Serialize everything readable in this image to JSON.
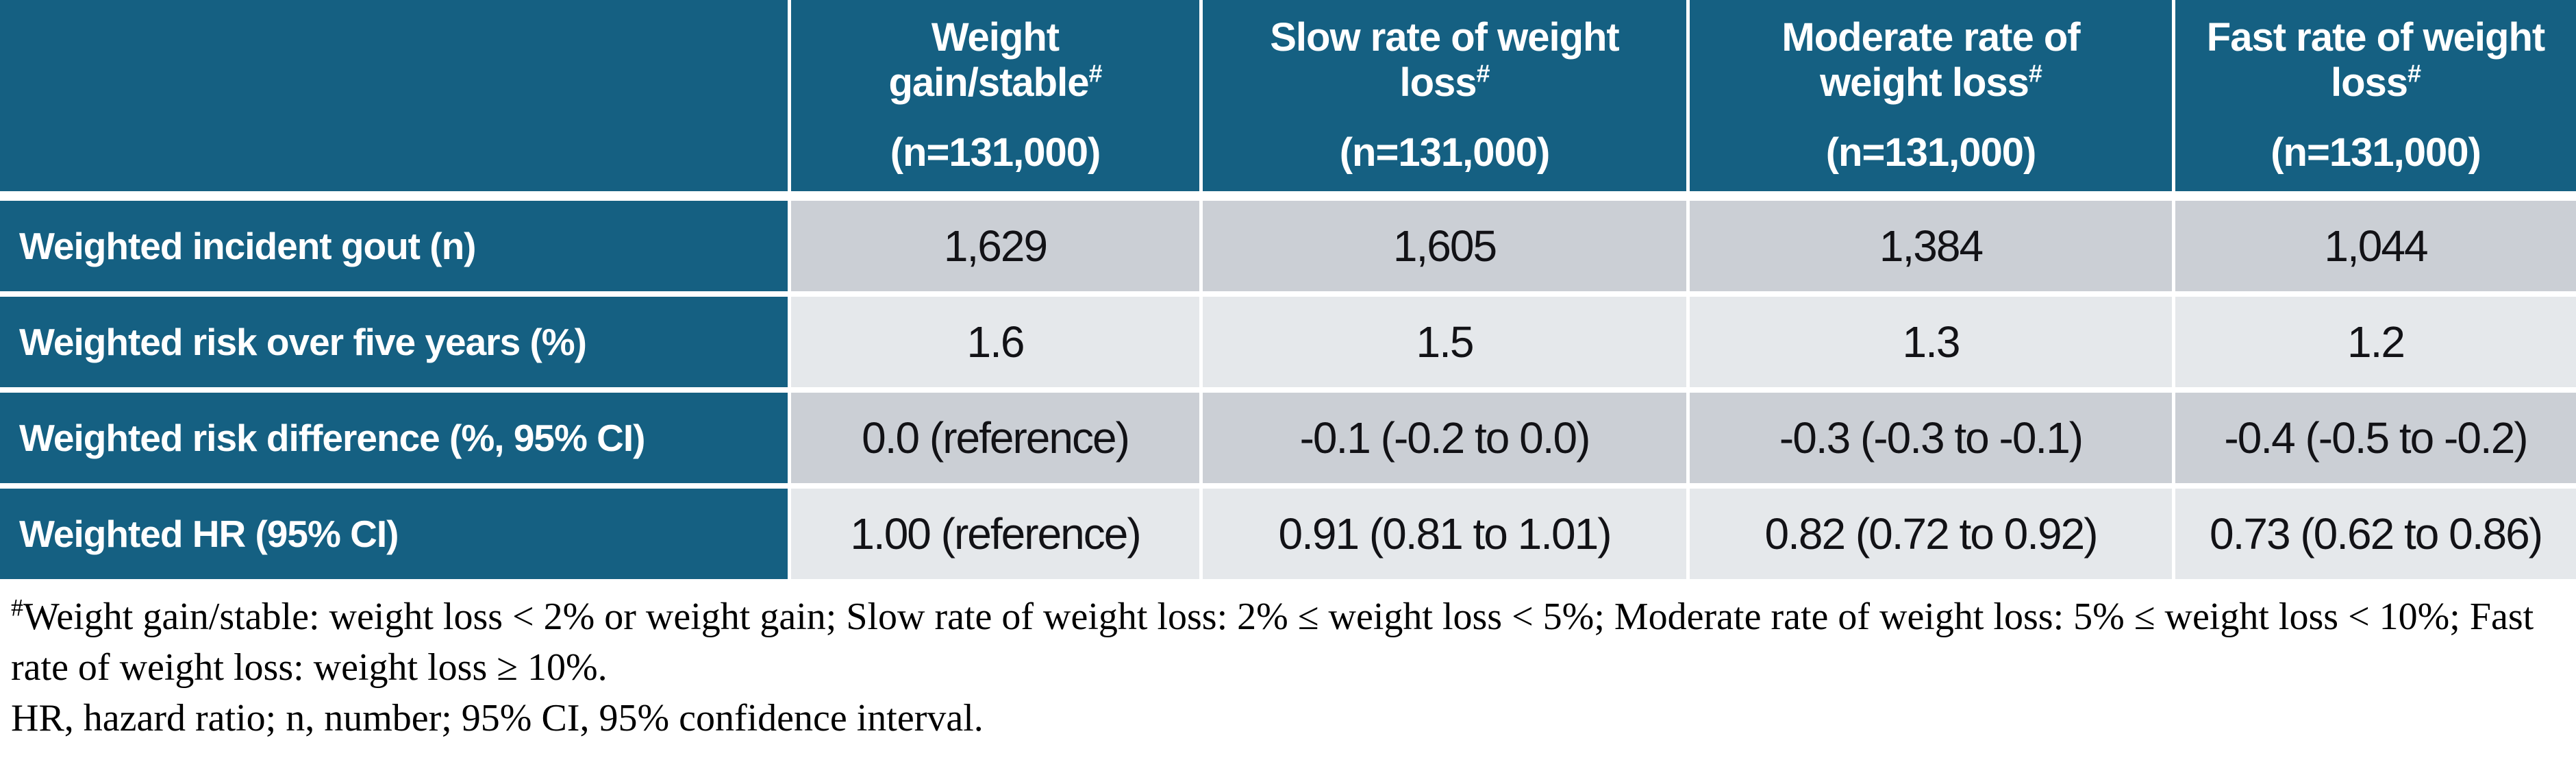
{
  "table": {
    "columns": [
      {
        "title_lines": [
          "Weight",
          "gain/stable"
        ],
        "marker": "#",
        "n": "(n=131,000)"
      },
      {
        "title_lines": [
          "Slow rate of weight",
          "loss"
        ],
        "marker": "#",
        "n": "(n=131,000)"
      },
      {
        "title_lines": [
          "Moderate rate of",
          "weight loss"
        ],
        "marker": "#",
        "n": "(n=131,000)"
      },
      {
        "title_lines": [
          "Fast rate of weight",
          "loss"
        ],
        "marker": "#",
        "n": "(n=131,000)"
      }
    ],
    "rows": [
      {
        "label": "Weighted incident gout (n)",
        "values": [
          "1,629",
          "1,605",
          "1,384",
          "1,044"
        ]
      },
      {
        "label": "Weighted risk over five years (%)",
        "values": [
          "1.6",
          "1.5",
          "1.3",
          "1.2"
        ]
      },
      {
        "label": "Weighted risk difference (%, 95% CI)",
        "values": [
          "0.0 (reference)",
          "-0.1 (-0.2 to 0.0)",
          "-0.3 (-0.3 to -0.1)",
          "-0.4 (-0.5 to -0.2)"
        ]
      },
      {
        "label": "Weighted HR (95% CI)",
        "values": [
          "1.00 (reference)",
          "0.91 (0.81 to 1.01)",
          "0.82 (0.72 to 0.92)",
          "0.73 (0.62 to 0.86)"
        ]
      }
    ]
  },
  "footnotes": {
    "marker": "#",
    "definition": "Weight gain/stable: weight loss < 2% or weight gain; Slow rate of weight loss: 2% ≤ weight loss < 5%; Moderate rate of weight loss: 5% ≤ weight loss < 10%; Fast rate of weight loss: weight loss ≥ 10%.",
    "abbreviations": "HR, hazard ratio; n, number; 95% CI, 95% confidence interval."
  },
  "colors": {
    "header_bg": "#156082",
    "row_band_dark": "#cbcfd5",
    "row_band_light": "#e5e8eb",
    "header_text": "#ffffff",
    "body_text": "#121216"
  }
}
